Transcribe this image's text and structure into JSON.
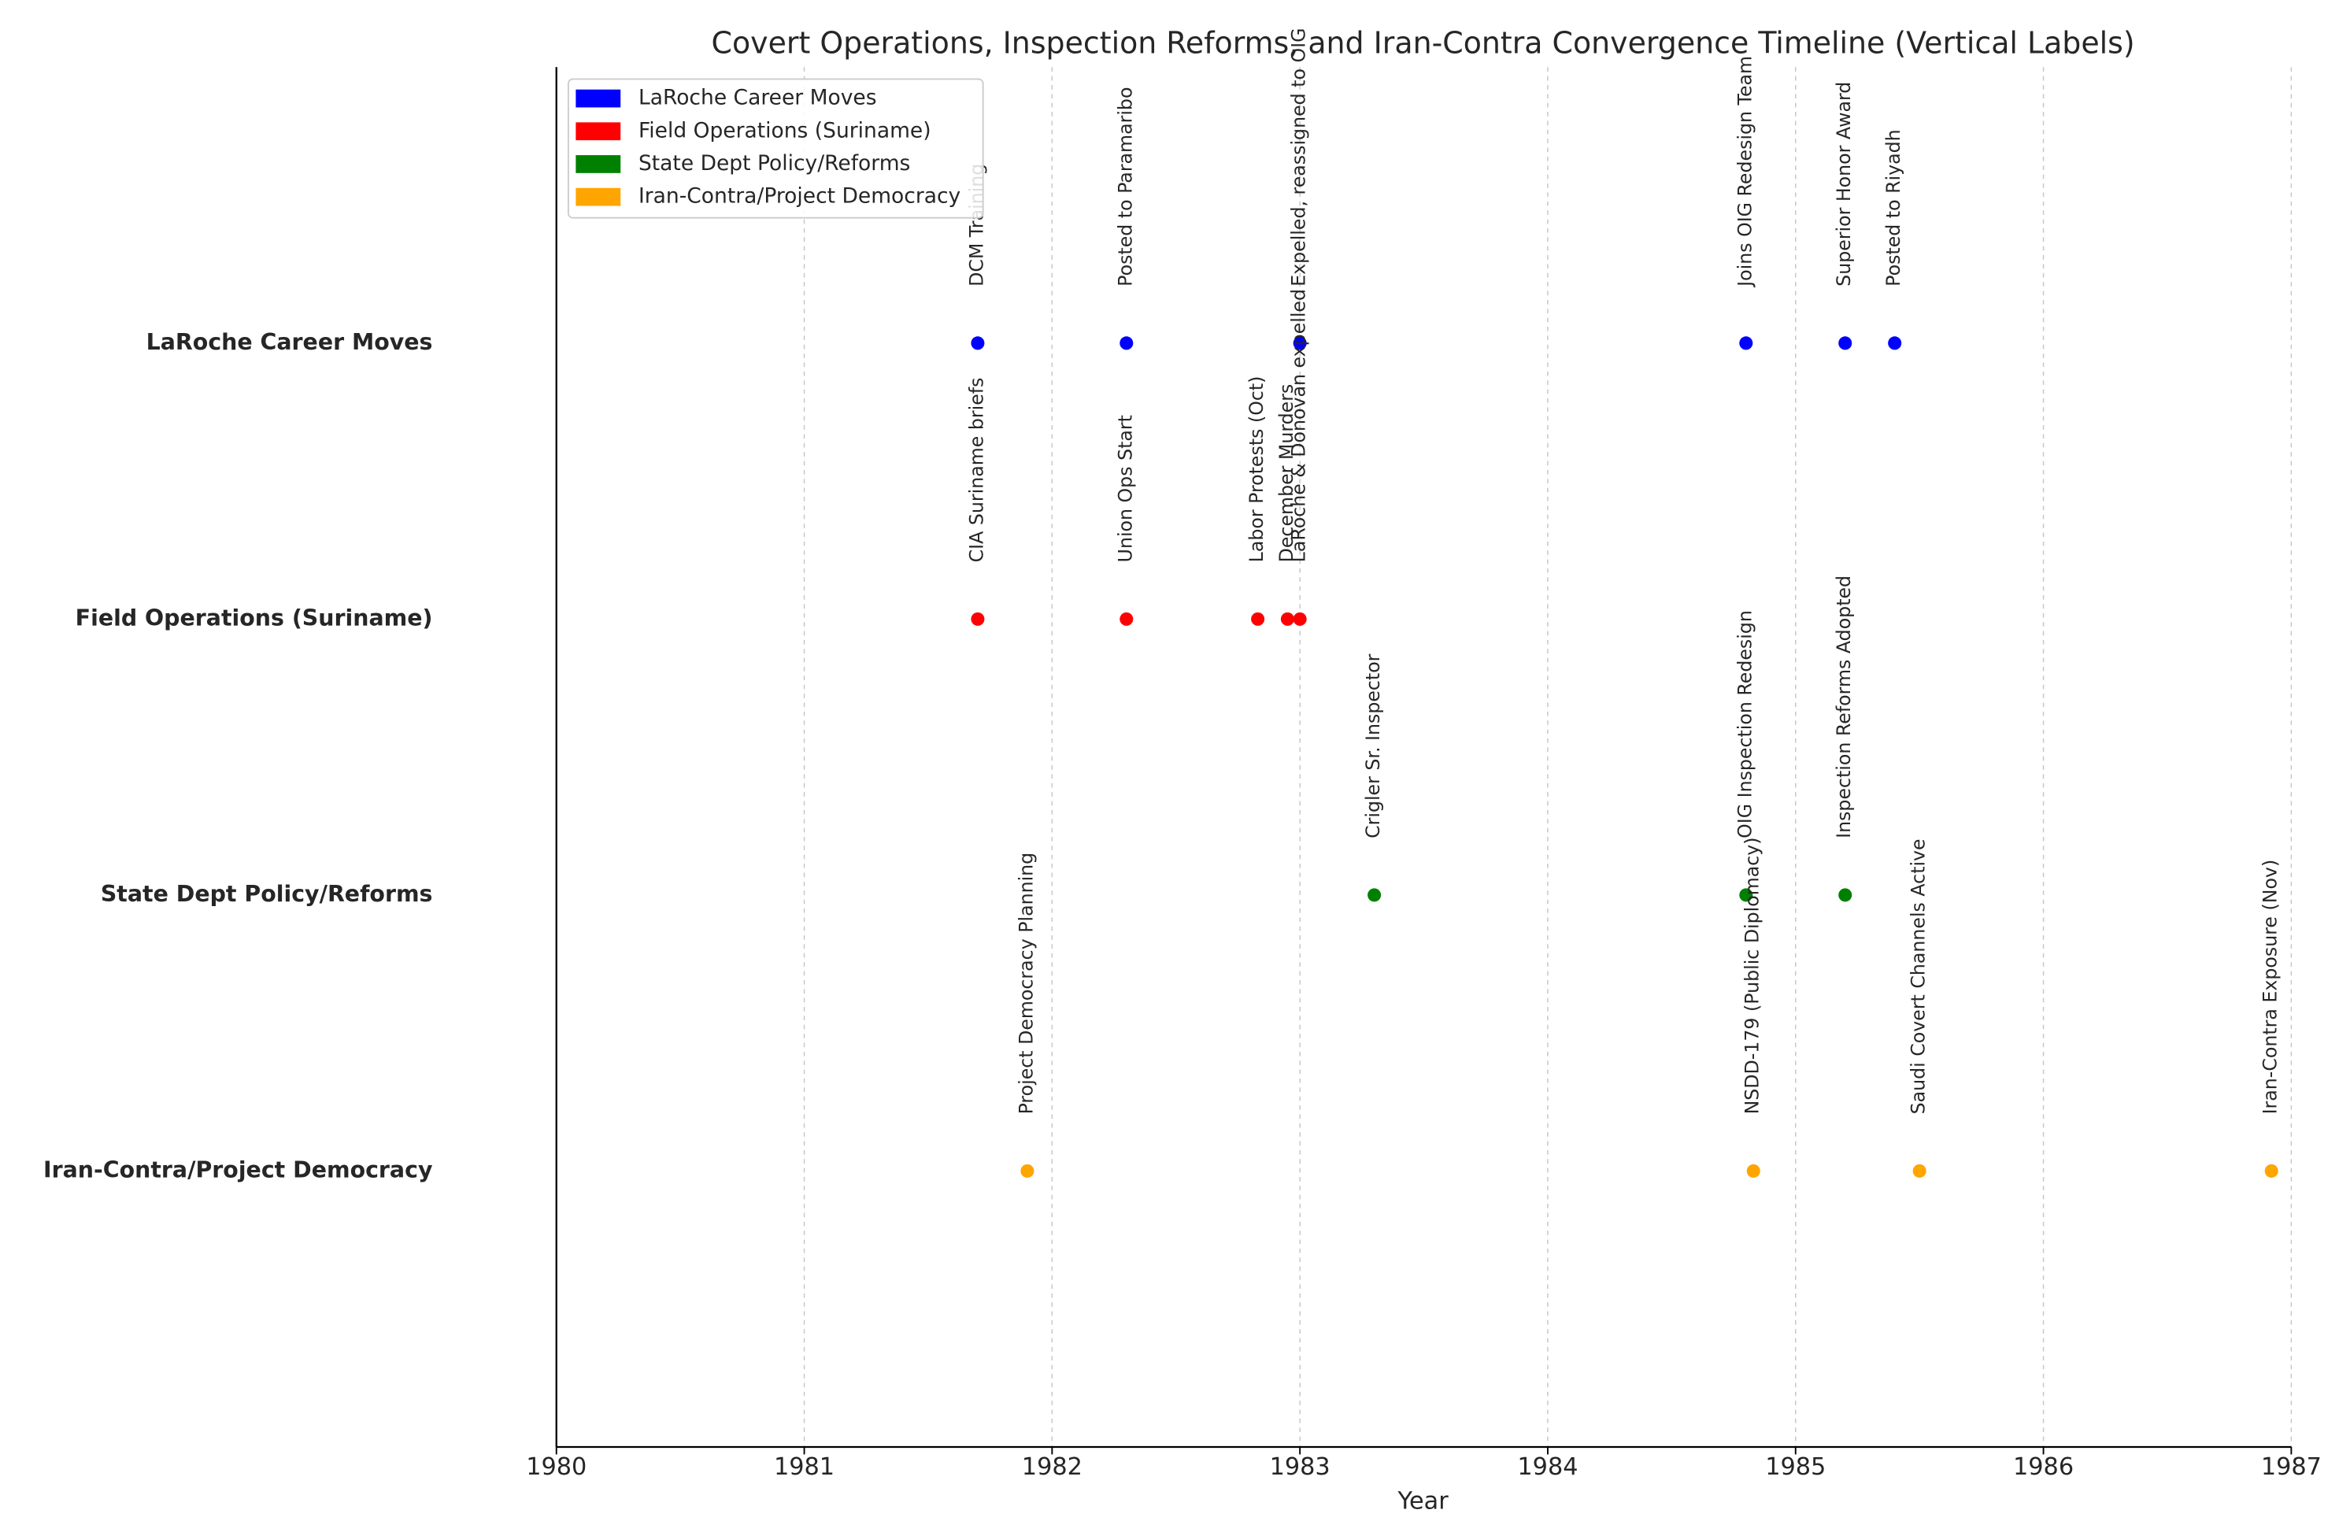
{
  "chart_data": {
    "type": "timeline",
    "title": "Covert Operations, Inspection Reforms, and Iran-Contra Convergence Timeline (Vertical Labels)",
    "xlabel": "Year",
    "xlim": [
      1980,
      1987
    ],
    "xticks": [
      1980,
      1981,
      1982,
      1983,
      1984,
      1985,
      1986,
      1987
    ],
    "grid": true,
    "legend": "upper left",
    "series": [
      {
        "name": "LaRoche Career Moves",
        "color": "#0000ff",
        "x": [
          1981.7,
          1982.3,
          1983.0,
          1984.8,
          1985.2,
          1985.4
        ],
        "labels": [
          "DCM Training",
          "Posted to Paramaribo",
          "Expelled, reassigned to OIG",
          "Joins OIG Redesign Team",
          "Superior Honor Award",
          "Posted to Riyadh"
        ]
      },
      {
        "name": "Field Operations (Suriname)",
        "color": "#ff0000",
        "x": [
          1981.7,
          1982.3,
          1982.83,
          1982.95,
          1983.0
        ],
        "labels": [
          "CIA Suriname briefs",
          "Union Ops Start",
          "Labor Protests (Oct)",
          "December Murders",
          "LaRoche & Donovan expelled"
        ]
      },
      {
        "name": "State Dept Policy/Reforms",
        "color": "#008000",
        "x": [
          1983.3,
          1984.8,
          1985.2
        ],
        "labels": [
          "Crigler Sr. Inspector",
          "OIG Inspection Redesign",
          "Inspection Reforms Adopted"
        ]
      },
      {
        "name": "Iran-Contra/Project Democracy",
        "color": "#ffa500",
        "x": [
          1981.9,
          1984.83,
          1985.5,
          1986.92
        ],
        "labels": [
          "Project Democracy Planning",
          "NSDD-179 (Public Diplomacy)",
          "Saudi Covert Channels Active",
          "Iran-Contra Exposure (Nov)"
        ]
      }
    ]
  }
}
